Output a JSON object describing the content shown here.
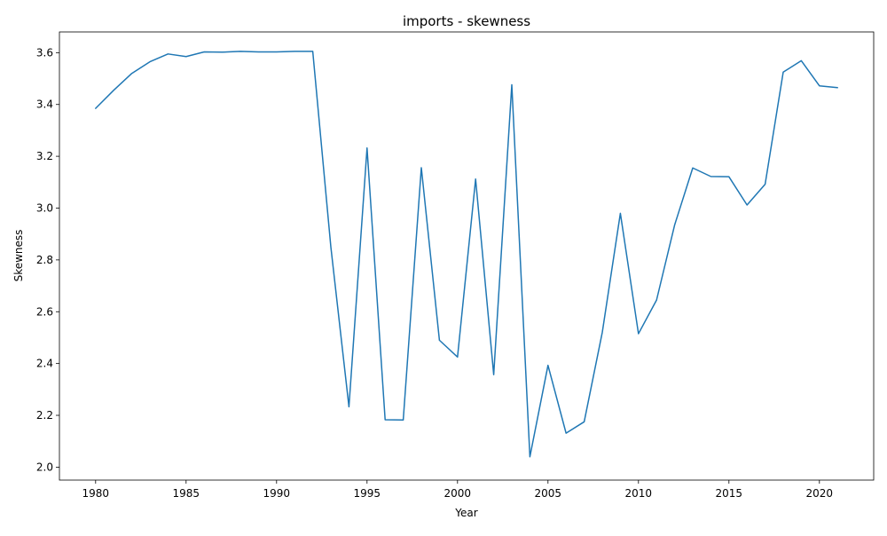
{
  "chart_data": {
    "type": "line",
    "title": "imports - skewness",
    "xlabel": "Year",
    "ylabel": "Skewness",
    "xlim": [
      1978,
      2023
    ],
    "ylim": [
      1.95,
      3.68
    ],
    "xticks": [
      1980,
      1985,
      1990,
      1995,
      2000,
      2005,
      2010,
      2015,
      2020
    ],
    "yticks": [
      2.0,
      2.2,
      2.4,
      2.6,
      2.8,
      3.0,
      3.2,
      3.4,
      3.6
    ],
    "grid": false,
    "line_color": "#1f77b4",
    "x": [
      1980,
      1981,
      1982,
      1983,
      1984,
      1985,
      1986,
      1987,
      1988,
      1989,
      1990,
      1991,
      1992,
      1993,
      1994,
      1995,
      1996,
      1997,
      1998,
      1999,
      2000,
      2001,
      2002,
      2003,
      2004,
      2005,
      2006,
      2007,
      2008,
      2009,
      2010,
      2011,
      2012,
      2013,
      2014,
      2015,
      2016,
      2017,
      2018,
      2019,
      2020,
      2021
    ],
    "values": [
      3.385,
      3.455,
      3.52,
      3.565,
      3.595,
      3.585,
      3.603,
      3.602,
      3.605,
      3.603,
      3.603,
      3.605,
      3.605,
      2.85,
      2.233,
      3.232,
      2.183,
      2.182,
      3.156,
      2.49,
      2.425,
      3.112,
      2.357,
      3.476,
      2.04,
      2.393,
      2.131,
      2.175,
      2.52,
      2.98,
      2.515,
      2.645,
      2.935,
      3.155,
      3.122,
      3.121,
      3.012,
      3.092,
      3.525,
      3.569,
      3.472,
      3.465
    ]
  }
}
